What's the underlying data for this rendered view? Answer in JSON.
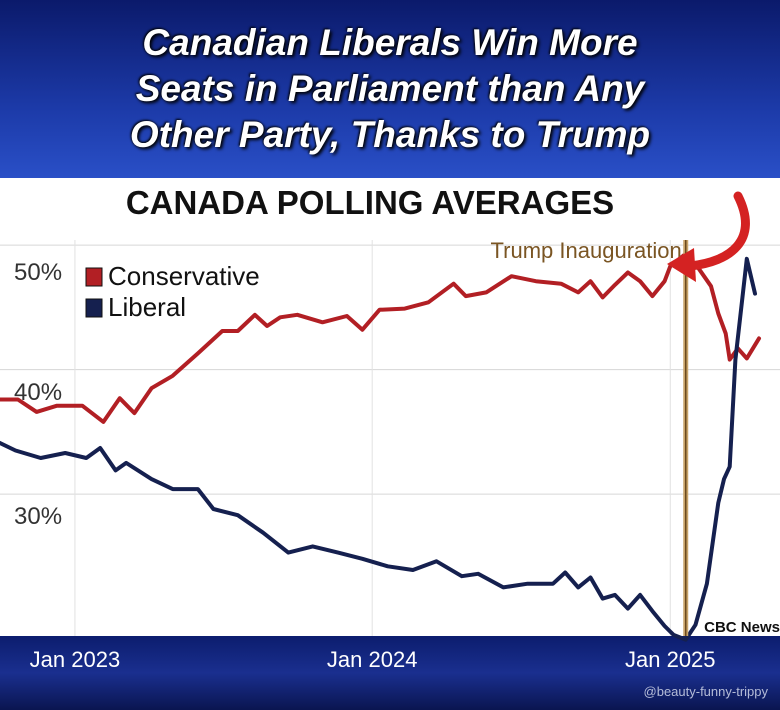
{
  "headline": {
    "lines": [
      "Canadian Liberals Win More",
      "Seats in Parliament than Any",
      "Other Party, Thanks to Trump"
    ]
  },
  "watermark": "@beauty-funny-trippy",
  "chart_data": {
    "type": "line",
    "title": "CANADA POLLING AVERAGES",
    "source": "CBC News",
    "x_ticks": [
      "Jan 2023",
      "Jan 2024",
      "Jan 2025"
    ],
    "y_ticks": [
      "50%",
      "40%",
      "30%"
    ],
    "ylim": [
      20,
      52
    ],
    "xlim": [
      "2022-10-01",
      "2025-05-01"
    ],
    "grid": true,
    "legend_position": "top-left",
    "annotation": {
      "label": "Trump Inauguration",
      "date": "2025-01-20"
    },
    "series": [
      {
        "name": "Conservative",
        "color": "#b21f24",
        "points": [
          [
            "2022-10-01",
            37.6
          ],
          [
            "2022-10-23",
            37.6
          ],
          [
            "2022-11-15",
            36.6
          ],
          [
            "2022-12-10",
            37.1
          ],
          [
            "2023-01-10",
            37.1
          ],
          [
            "2023-02-05",
            35.8
          ],
          [
            "2023-02-25",
            37.7
          ],
          [
            "2023-03-15",
            36.5
          ],
          [
            "2023-04-05",
            38.5
          ],
          [
            "2023-05-01",
            39.5
          ],
          [
            "2023-06-01",
            41.3
          ],
          [
            "2023-07-01",
            43.1
          ],
          [
            "2023-07-20",
            43.1
          ],
          [
            "2023-08-10",
            44.4
          ],
          [
            "2023-08-25",
            43.5
          ],
          [
            "2023-09-10",
            44.2
          ],
          [
            "2023-10-01",
            44.4
          ],
          [
            "2023-11-01",
            43.8
          ],
          [
            "2023-12-01",
            44.3
          ],
          [
            "2023-12-20",
            43.2
          ],
          [
            "2024-01-10",
            44.8
          ],
          [
            "2024-02-10",
            44.9
          ],
          [
            "2024-03-10",
            45.4
          ],
          [
            "2024-04-10",
            46.9
          ],
          [
            "2024-04-25",
            45.9
          ],
          [
            "2024-05-20",
            46.2
          ],
          [
            "2024-06-20",
            47.5
          ],
          [
            "2024-07-20",
            47.1
          ],
          [
            "2024-08-20",
            46.9
          ],
          [
            "2024-09-10",
            46.2
          ],
          [
            "2024-09-25",
            47.1
          ],
          [
            "2024-10-10",
            45.8
          ],
          [
            "2024-10-25",
            46.8
          ],
          [
            "2024-11-10",
            47.8
          ],
          [
            "2024-11-25",
            47.1
          ],
          [
            "2024-12-10",
            45.9
          ],
          [
            "2024-12-25",
            47.1
          ],
          [
            "2025-01-01",
            48.3
          ],
          [
            "2025-01-20",
            49.3
          ],
          [
            "2025-02-05",
            48.1
          ],
          [
            "2025-02-20",
            46.7
          ],
          [
            "2025-03-01",
            44.5
          ],
          [
            "2025-03-10",
            42.9
          ],
          [
            "2025-03-15",
            40.8
          ],
          [
            "2025-03-25",
            41.7
          ],
          [
            "2025-04-05",
            40.9
          ],
          [
            "2025-04-20",
            42.5
          ]
        ]
      },
      {
        "name": "Liberal",
        "color": "#15204f",
        "points": [
          [
            "2022-10-01",
            34.1
          ],
          [
            "2022-10-20",
            33.5
          ],
          [
            "2022-11-20",
            32.9
          ],
          [
            "2022-12-20",
            33.3
          ],
          [
            "2023-01-15",
            32.9
          ],
          [
            "2023-02-01",
            33.7
          ],
          [
            "2023-02-20",
            31.9
          ],
          [
            "2023-03-05",
            32.5
          ],
          [
            "2023-04-05",
            31.2
          ],
          [
            "2023-05-01",
            30.4
          ],
          [
            "2023-06-01",
            30.4
          ],
          [
            "2023-06-20",
            28.8
          ],
          [
            "2023-07-20",
            28.3
          ],
          [
            "2023-08-20",
            26.9
          ],
          [
            "2023-09-20",
            25.3
          ],
          [
            "2023-10-20",
            25.8
          ],
          [
            "2023-11-20",
            25.3
          ],
          [
            "2023-12-20",
            24.8
          ],
          [
            "2024-01-20",
            24.2
          ],
          [
            "2024-02-20",
            23.9
          ],
          [
            "2024-03-20",
            24.6
          ],
          [
            "2024-04-20",
            23.4
          ],
          [
            "2024-05-10",
            23.6
          ],
          [
            "2024-06-10",
            22.5
          ],
          [
            "2024-07-10",
            22.8
          ],
          [
            "2024-08-10",
            22.8
          ],
          [
            "2024-08-25",
            23.7
          ],
          [
            "2024-09-10",
            22.5
          ],
          [
            "2024-09-25",
            23.3
          ],
          [
            "2024-10-10",
            21.6
          ],
          [
            "2024-10-25",
            21.9
          ],
          [
            "2024-11-10",
            20.8
          ],
          [
            "2024-11-25",
            21.9
          ],
          [
            "2024-12-10",
            20.6
          ],
          [
            "2024-12-25",
            19.4
          ],
          [
            "2025-01-05",
            18.7
          ],
          [
            "2025-01-20",
            18.3
          ],
          [
            "2025-02-01",
            19.5
          ],
          [
            "2025-02-15",
            22.8
          ],
          [
            "2025-03-01",
            29.3
          ],
          [
            "2025-03-08",
            31.2
          ],
          [
            "2025-03-15",
            32.2
          ],
          [
            "2025-03-22",
            40.8
          ],
          [
            "2025-04-05",
            48.9
          ],
          [
            "2025-04-15",
            46.1
          ]
        ]
      }
    ]
  }
}
